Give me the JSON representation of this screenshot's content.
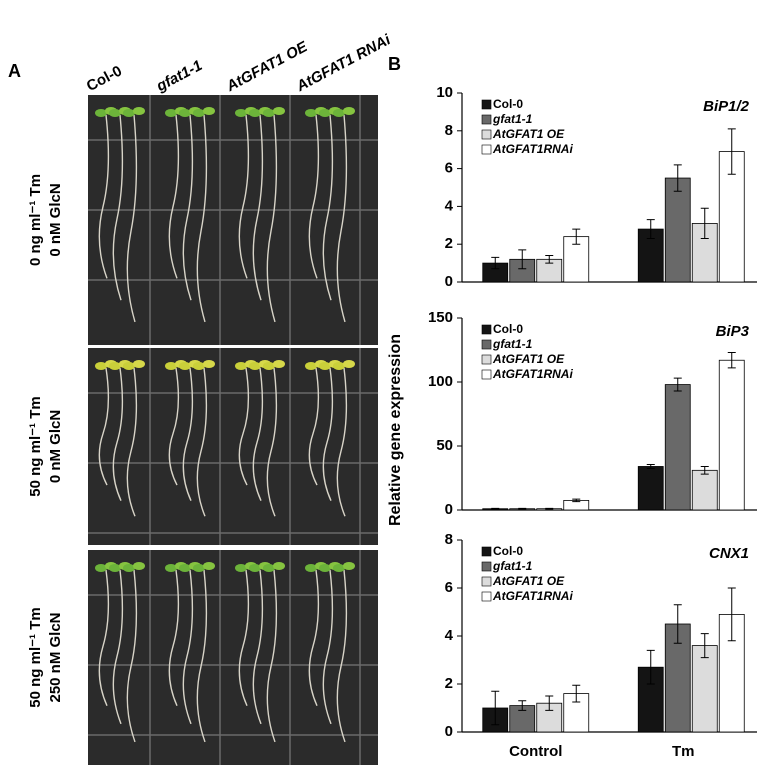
{
  "panel_labels": [
    "A",
    "B"
  ],
  "panel_a": {
    "columns": [
      "Col-0",
      "gfat1-1",
      "AtGFAT1 OE",
      "AtGFAT1 RNAi"
    ],
    "rows": [
      [
        "0 ng ml⁻¹ Tm",
        "0 nM GlcN"
      ],
      [
        "50 ng ml⁻¹ Tm",
        "0 nM GlcN"
      ],
      [
        "50 ng ml⁻¹ Tm",
        "250 nM GlcN"
      ]
    ]
  },
  "ylabel": "Relative gene expression",
  "categories": [
    "Control",
    "Tm"
  ],
  "chart_data": [
    {
      "type": "bar",
      "title": "BiP1/2",
      "ylim": [
        0,
        10
      ],
      "yticks": [
        0,
        2,
        4,
        6,
        8,
        10
      ],
      "series": [
        {
          "name": "Col-0",
          "color": "#141414",
          "values": [
            1.0,
            2.8
          ],
          "errors": [
            0.3,
            0.5
          ]
        },
        {
          "name": "gfat1-1",
          "color": "#696969",
          "values": [
            1.2,
            5.5
          ],
          "errors": [
            0.5,
            0.7
          ]
        },
        {
          "name": "AtGFAT1 OE",
          "color": "#dcdcdc",
          "values": [
            1.2,
            3.1
          ],
          "errors": [
            0.2,
            0.8
          ]
        },
        {
          "name": "AtGFAT1RNAi",
          "color": "#ffffff",
          "values": [
            2.4,
            6.9
          ],
          "errors": [
            0.4,
            1.2
          ]
        }
      ]
    },
    {
      "type": "bar",
      "title": "BiP3",
      "ylim": [
        0,
        150
      ],
      "yticks": [
        0,
        50,
        100,
        150
      ],
      "series": [
        {
          "name": "Col-0",
          "color": "#141414",
          "values": [
            1,
            34
          ],
          "errors": [
            0.3,
            1.5
          ]
        },
        {
          "name": "gfat1-1",
          "color": "#696969",
          "values": [
            1,
            98
          ],
          "errors": [
            0.3,
            5
          ]
        },
        {
          "name": "AtGFAT1 OE",
          "color": "#dcdcdc",
          "values": [
            1,
            31
          ],
          "errors": [
            0.3,
            3
          ]
        },
        {
          "name": "AtGFAT1RNAi",
          "color": "#ffffff",
          "values": [
            7.5,
            117
          ],
          "errors": [
            1,
            6
          ]
        }
      ]
    },
    {
      "type": "bar",
      "title": "CNX1",
      "ylim": [
        0,
        8
      ],
      "yticks": [
        0,
        2,
        4,
        6,
        8
      ],
      "series": [
        {
          "name": "Col-0",
          "color": "#141414",
          "values": [
            1.0,
            2.7
          ],
          "errors": [
            0.7,
            0.7
          ]
        },
        {
          "name": "gfat1-1",
          "color": "#696969",
          "values": [
            1.1,
            4.5
          ],
          "errors": [
            0.2,
            0.8
          ]
        },
        {
          "name": "AtGFAT1 OE",
          "color": "#dcdcdc",
          "values": [
            1.2,
            3.6
          ],
          "errors": [
            0.3,
            0.5
          ]
        },
        {
          "name": "AtGFAT1RNAi",
          "color": "#ffffff",
          "values": [
            1.6,
            4.9
          ],
          "errors": [
            0.35,
            1.1
          ]
        }
      ]
    }
  ]
}
